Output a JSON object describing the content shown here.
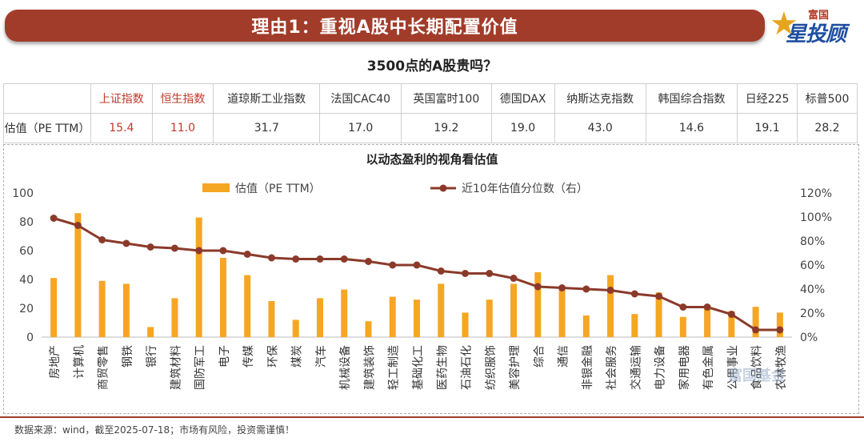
{
  "header": {
    "title": "理由1：重视A股中长期配置价值"
  },
  "logo": {
    "small": "富国",
    "big": "星投顾"
  },
  "table": {
    "title": "3500点的A股贵吗？",
    "row_label": "估值（PE TTM）",
    "headers": [
      "上证指数",
      "恒生指数",
      "道琼斯工业指数",
      "法国CAC40",
      "英国富时100",
      "德国DAX",
      "纳斯达克指数",
      "韩国综合指数",
      "日经225",
      "标普500"
    ],
    "values": [
      "15.4",
      "11.0",
      "31.7",
      "17.0",
      "19.2",
      "19.0",
      "43.0",
      "14.6",
      "19.1",
      "28.2"
    ],
    "highlight_color": "#c0392b"
  },
  "chart_data": {
    "type": "bar",
    "title": "以动态盈利的视角看估值",
    "categories": [
      "房地产",
      "计算机",
      "商贸零售",
      "钢铁",
      "银行",
      "建筑材料",
      "国防军工",
      "电子",
      "传媒",
      "环保",
      "煤炭",
      "汽车",
      "机械设备",
      "建筑装饰",
      "轻工制造",
      "基础化工",
      "医药生物",
      "石油石化",
      "纺织服饰",
      "美容护理",
      "综合",
      "通信",
      "非银金融",
      "社会服务",
      "交通运输",
      "电力设备",
      "家用电器",
      "有色金属",
      "公用事业",
      "食品饮料",
      "农林牧渔"
    ],
    "series": [
      {
        "name": "估值（PE TTM）",
        "type": "bar",
        "axis": "left",
        "color": "#f5a623",
        "values": [
          41,
          86,
          39,
          37,
          7,
          27,
          83,
          55,
          43,
          25,
          12,
          27,
          33,
          11,
          28,
          26,
          37,
          17,
          26,
          37,
          45,
          35,
          15,
          43,
          16,
          31,
          14,
          22,
          18,
          21,
          17
        ]
      },
      {
        "name": "近10年估值分位数（右）",
        "type": "line",
        "axis": "right",
        "color": "#8b3a2a",
        "values": [
          99,
          93,
          81,
          78,
          75,
          74,
          72,
          72,
          69,
          66,
          65,
          65,
          65,
          63,
          60,
          60,
          55,
          53,
          53,
          49,
          42,
          41,
          40,
          39,
          36,
          34,
          25,
          25,
          19,
          6,
          6
        ]
      }
    ],
    "y_left": {
      "ticks": [
        "0",
        "20",
        "40",
        "60",
        "80",
        "100"
      ],
      "min": 0,
      "max": 100
    },
    "y_right": {
      "ticks": [
        "0%",
        "20%",
        "40%",
        "60%",
        "80%",
        "100%",
        "120%"
      ],
      "min": 0,
      "max": 120
    },
    "legend": "top-center",
    "grid": false
  },
  "watermark": "富国基金",
  "footer": {
    "source": "数据来源：wind，截至2025-07-18；市场有风险，投资需谨慎！"
  }
}
